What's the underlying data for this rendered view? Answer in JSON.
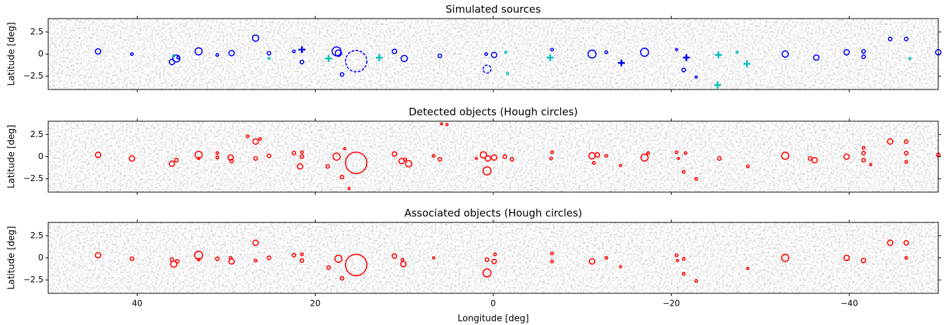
{
  "chart_data": [
    {
      "type": "scatter",
      "title": "Simulated sources",
      "ylabel": "Latitude [deg]",
      "xlim": [
        50,
        -50
      ],
      "ylim": [
        -4,
        4
      ],
      "xticks": [
        40,
        20,
        0,
        -20,
        -40
      ],
      "xticklabels": false,
      "yticks": [
        {
          "value": -2.5,
          "label": "−2.5"
        },
        0,
        2.5
      ],
      "series": [
        {
          "color": "#0000ff",
          "marker": "circle",
          "linestyle": "solid",
          "x": [
            44.4,
            40.6,
            36.1,
            35.6,
            35.4,
            33.1,
            31,
            29.4,
            26.7,
            25.2,
            22.4,
            21.5,
            17.6,
            17.4,
            17,
            11.1,
            10,
            6,
            0.8,
            -0.1,
            -6.6,
            -11.1,
            -12.7,
            -17,
            -20.6,
            -21.4,
            -22.8,
            -32.8,
            -36.3,
            -39.7,
            -41.6,
            -41.6,
            -44.6,
            -46.4,
            -50
          ],
          "y": [
            0.3,
            0,
            -0.9,
            -0.5,
            -0.4,
            0.3,
            -0.1,
            0.1,
            1.8,
            0.1,
            0.3,
            -0.9,
            0.3,
            0.1,
            -2.3,
            0.3,
            -0.5,
            -0.2,
            0,
            -0.1,
            0.5,
            0,
            0.2,
            0.2,
            0.5,
            -1.8,
            -2.6,
            0,
            -0.4,
            0.2,
            0.3,
            -0.3,
            1.7,
            1.7,
            0.2
          ],
          "r": [
            0.3,
            0.15,
            0.3,
            0.4,
            0.15,
            0.4,
            0.15,
            0.3,
            0.35,
            0.2,
            0.15,
            0.2,
            0.5,
            0.35,
            0.2,
            0.25,
            0.35,
            0.2,
            0.15,
            0.3,
            0.15,
            0.45,
            0.15,
            0.45,
            0.12,
            0.2,
            0.12,
            0.35,
            0.3,
            0.3,
            0.2,
            0.2,
            0.2,
            0.2,
            0.3
          ]
        },
        {
          "color": "#0000ff",
          "marker": "circle",
          "linestyle": "dashed",
          "x": [
            15.4,
            0.7
          ],
          "y": [
            -0.8,
            -1.7
          ],
          "r": [
            1.2,
            0.45
          ]
        },
        {
          "color": "#00bfbf",
          "marker": "circle",
          "linestyle": "solid",
          "x": [
            35.9,
            25.2,
            -1.4,
            -1.6,
            -46.8,
            -27.4
          ],
          "y": [
            -0.2,
            -0.5,
            0.2,
            -2.2,
            -0.5,
            0.2
          ],
          "r": [
            0.12,
            0.12,
            0.12,
            0.12,
            0.12,
            0.12
          ]
        },
        {
          "color": "#0000ff",
          "marker": "plus",
          "x": [
            21.5,
            -14.4,
            -21.7
          ],
          "y": [
            0.5,
            -1,
            -0.4
          ]
        },
        {
          "color": "#00bfbf",
          "marker": "plus",
          "x": [
            18.5,
            12.8,
            -6.4,
            -25.3,
            -25.2,
            -28.5
          ],
          "y": [
            -0.5,
            -0.4,
            -0.4,
            -0.1,
            -3.5,
            -1.1
          ]
        }
      ]
    },
    {
      "type": "scatter",
      "title": "Detected objects (Hough circles)",
      "ylabel": "Latitude [deg]",
      "xlim": [
        50,
        -50
      ],
      "ylim": [
        -4,
        4
      ],
      "xticks": [
        40,
        20,
        0,
        -20,
        -40
      ],
      "xticklabels": false,
      "yticks": [
        {
          "value": -2.5,
          "label": "−2.5"
        },
        0,
        2.5
      ],
      "series": [
        {
          "color": "#ff0000",
          "marker": "circle",
          "linestyle": "solid",
          "x": [
            44.4,
            40.6,
            36.1,
            35.6,
            33.1,
            33.1,
            31,
            31,
            29.5,
            29.4,
            27.6,
            26.7,
            26.2,
            26.7,
            25.2,
            22.4,
            21.5,
            21.5,
            21.7,
            18.6,
            17.6,
            16.7,
            17,
            16.2,
            15.4,
            11.1,
            10.3,
            9.5,
            9.9,
            6.7,
            6,
            5.8,
            5.2,
            1.1,
            0.6,
            0.7,
            -0.1,
            -1.3,
            -2.1,
            1.9,
            -6.6,
            -6.5,
            -11.1,
            -11.7,
            -11.3,
            -12.7,
            -14.3,
            -17,
            -17.4,
            -20.6,
            -21.6,
            -20.8,
            -21.4,
            -22.8,
            -25.4,
            -28.6,
            -32.8,
            -36.1,
            -35.6,
            -39.7,
            -41.6,
            -41.6,
            -41.6,
            -42.4,
            -44.6,
            -46.4,
            -46.4,
            -46.4,
            -50
          ],
          "y": [
            0.2,
            -0.2,
            -0.8,
            -0.4,
            0.2,
            -0.2,
            0.4,
            -0.1,
            -0.1,
            -0.5,
            2.3,
            1.7,
            2.0,
            -0.2,
            0.1,
            0.4,
            0.5,
            0,
            -1.1,
            -1.1,
            0,
            0.9,
            -2.3,
            -3.6,
            -0.7,
            0.3,
            -0.5,
            -0.8,
            -0.3,
            0.1,
            -0.3,
            3.7,
            3.6,
            0.2,
            -0.2,
            -1.6,
            -0.1,
            0,
            -0.3,
            -0.2,
            0.5,
            -0.2,
            0.1,
            0.2,
            -0.7,
            0.1,
            -1.0,
            -0.1,
            0.4,
            0.5,
            0.4,
            -0.2,
            -1.7,
            -2.5,
            -0.2,
            -1.1,
            0.1,
            -0.4,
            -0.2,
            0,
            1.0,
            0.4,
            -0.4,
            -0.9,
            1.7,
            1.7,
            0.4,
            -0.6,
            0.2
          ],
          "r": [
            0.3,
            0.3,
            0.3,
            0.2,
            0.4,
            0.12,
            0.15,
            0.15,
            0.3,
            0.2,
            0.15,
            0.3,
            0.15,
            0.2,
            0.2,
            0.2,
            0.15,
            0.2,
            0.3,
            0.2,
            0.4,
            0.12,
            0.2,
            0.12,
            1.2,
            0.25,
            0.3,
            0.35,
            0.15,
            0.15,
            0.2,
            0.12,
            0.12,
            0.35,
            0.3,
            0.45,
            0.3,
            0.2,
            0.2,
            0.12,
            0.15,
            0.15,
            0.35,
            0.25,
            0.15,
            0.15,
            0.12,
            0.4,
            0.15,
            0.15,
            0.15,
            0.12,
            0.15,
            0.15,
            0.2,
            0.15,
            0.4,
            0.3,
            0.2,
            0.3,
            0.15,
            0.2,
            0.2,
            0.12,
            0.3,
            0.2,
            0.2,
            0.15,
            0.2
          ]
        }
      ]
    },
    {
      "type": "scatter",
      "title": "Associated objects (Hough circles)",
      "ylabel": "Latitude [deg]",
      "xlabel": "Longitude [deg]",
      "xlim": [
        50,
        -50
      ],
      "ylim": [
        -4,
        4
      ],
      "xticks": [
        40,
        20,
        0,
        {
          "value": -20,
          "label": "−20"
        },
        {
          "value": -40,
          "label": "−40"
        }
      ],
      "xticklabels": true,
      "yticks": [
        {
          "value": -2.5,
          "label": "−2.5"
        },
        0,
        2.5
      ],
      "series": [
        {
          "color": "#ff0000",
          "marker": "circle",
          "linestyle": "solid",
          "x": [
            44.4,
            40.6,
            36.1,
            35.9,
            35.5,
            33.1,
            33.1,
            31,
            29.4,
            29.5,
            26.7,
            26.7,
            25.2,
            22.4,
            21.5,
            21.5,
            18.5,
            17.4,
            17,
            15.4,
            11.1,
            10.1,
            10.2,
            6.7,
            0.7,
            0.7,
            -0.1,
            -0.2,
            -6.6,
            -6.6,
            -11.1,
            -12.7,
            -14.3,
            -20.6,
            -21.4,
            -20.7,
            -21.4,
            -22.8,
            -28.6,
            -32.8,
            -39.7,
            -41.6,
            -44.6,
            -46.4,
            -46.4
          ],
          "y": [
            0.3,
            -0.1,
            -0.2,
            -0.7,
            -0.4,
            0.3,
            -0.2,
            -0.1,
            -0.4,
            0,
            1.7,
            -0.3,
            0,
            0.3,
            0.4,
            -0.3,
            -1.1,
            -0.1,
            -2.3,
            -0.8,
            0.2,
            -0.7,
            -0.2,
            0,
            -0.2,
            -1.7,
            -0.4,
            0.4,
            0.5,
            -0.4,
            -0.4,
            0,
            -1,
            0.3,
            -0.1,
            -0.3,
            -1.8,
            -2.6,
            -1.2,
            0,
            0,
            -0.3,
            1.7,
            1.7,
            0
          ],
          "r": [
            0.3,
            0.2,
            0.2,
            0.35,
            0.2,
            0.45,
            0.15,
            0.2,
            0.3,
            0.15,
            0.3,
            0.15,
            0.2,
            0.2,
            0.15,
            0.2,
            0.2,
            0.4,
            0.2,
            1.2,
            0.25,
            0.3,
            0.15,
            0.12,
            0.2,
            0.45,
            0.25,
            0.15,
            0.15,
            0.15,
            0.3,
            0.15,
            0.12,
            0.15,
            0.15,
            0.12,
            0.15,
            0.15,
            0.12,
            0.4,
            0.3,
            0.25,
            0.3,
            0.25,
            0.15
          ]
        }
      ]
    }
  ]
}
